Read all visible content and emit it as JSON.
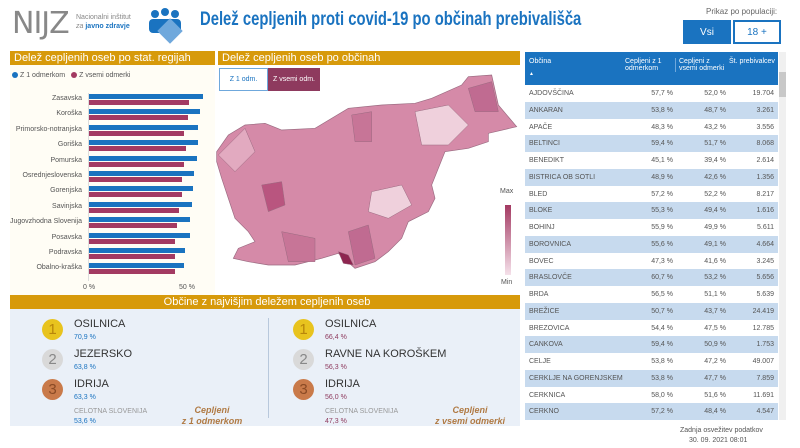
{
  "header": {
    "logo_text": "NIJZ",
    "logo_sub1": "Nacionalni inštitut",
    "logo_sub2_a": "za",
    "logo_sub2_b": "javno zdravje",
    "erco_logo": "eRCO",
    "title": "Delež cepljenih proti covid-19 po občinah prebivališča"
  },
  "population": {
    "label": "Prikaz po populaciji:",
    "options": [
      "Vsi",
      "18 +"
    ],
    "selected": "Vsi"
  },
  "regions_panel": {
    "title": "Delež cepljenih oseb po stat. regijah"
  },
  "chart_data": {
    "type": "bar",
    "orientation": "horizontal",
    "title": "Delež cepljenih oseb po stat. regijah",
    "categories": [
      "Zasavska",
      "Koroška",
      "Primorsko-notranjska",
      "Goriška",
      "Pomurska",
      "Osrednjeslovenska",
      "Gorenjska",
      "Savinjska",
      "Jugovzhodna Slovenija",
      "Posavska",
      "Podravska",
      "Obalno-kraška"
    ],
    "series": [
      {
        "name": "Z 1 odmerkom",
        "color": "#1a73c0",
        "values": [
          58.8,
          57.2,
          56.2,
          56.2,
          55.7,
          54.1,
          53.6,
          53.1,
          52.1,
          52.0,
          49.5,
          49.2
        ]
      },
      {
        "name": "Z vsemi odmerki",
        "color": "#a33a62",
        "values": [
          51.5,
          51.0,
          49.0,
          50.0,
          49.0,
          47.9,
          47.9,
          46.4,
          45.4,
          44.3,
          44.1,
          44.1
        ]
      }
    ],
    "xticks": [
      "0 %",
      "50 %"
    ],
    "xlim": [
      0,
      60
    ]
  },
  "map_panel": {
    "title": "Delež cepljenih oseb po občinah",
    "toggle": [
      "Z 1 odm.",
      "Z vsemi odm."
    ],
    "selected": "Z vsemi odm.",
    "legend_max": "Max",
    "legend_min": "Min"
  },
  "table": {
    "headers": [
      "Občina",
      "Cepljeni z 1 odmerkom",
      "Cepljeni z vsemi odmerki",
      "Št. prebivalcev"
    ],
    "sort_icon": "▲",
    "rows": [
      [
        "AJDOVŠČINA",
        "57,7 %",
        "52,0 %",
        "19.704"
      ],
      [
        "ANKARAN",
        "53,8 %",
        "48,7 %",
        "3.261"
      ],
      [
        "APAČE",
        "48,3 %",
        "43,2 %",
        "3.556"
      ],
      [
        "BELTINCI",
        "59,4 %",
        "51,7 %",
        "8.068"
      ],
      [
        "BENEDIKT",
        "45,1 %",
        "39,4 %",
        "2.614"
      ],
      [
        "BISTRICA OB SOTLI",
        "48,9 %",
        "42,6 %",
        "1.356"
      ],
      [
        "BLED",
        "57,2 %",
        "52,2 %",
        "8.217"
      ],
      [
        "BLOKE",
        "55,3 %",
        "49,4 %",
        "1.616"
      ],
      [
        "BOHINJ",
        "55,9 %",
        "49,9 %",
        "5.611"
      ],
      [
        "BOROVNICA",
        "55,6 %",
        "49,1 %",
        "4.664"
      ],
      [
        "BOVEC",
        "47,3 %",
        "41,6 %",
        "3.245"
      ],
      [
        "BRASLOVČE",
        "60,7 %",
        "53,2 %",
        "5.656"
      ],
      [
        "BRDA",
        "56,5 %",
        "51,1 %",
        "5.639"
      ],
      [
        "BREŽICE",
        "50,7 %",
        "43,7 %",
        "24.419"
      ],
      [
        "BREZOVICA",
        "54,4 %",
        "47,5 %",
        "12.785"
      ],
      [
        "CANKOVA",
        "59,4 %",
        "50,9 %",
        "1.753"
      ],
      [
        "CELJE",
        "53,8 %",
        "47,2 %",
        "49.007"
      ],
      [
        "CERKLJE NA GORENJSKEM",
        "53,8 %",
        "47,7 %",
        "7.859"
      ],
      [
        "CERKNICA",
        "58,0 %",
        "51,6 %",
        "11.691"
      ],
      [
        "CERKNO",
        "57,2 %",
        "48,4 %",
        "4.547"
      ]
    ]
  },
  "top": {
    "title": "Občine z najvišjim deležem cepljenih oseb",
    "left": {
      "items": [
        {
          "rank": "1",
          "name": "OSILNICA",
          "pct": "70,9 %"
        },
        {
          "rank": "2",
          "name": "JEZERSKO",
          "pct": "63,8 %"
        },
        {
          "rank": "3",
          "name": "IDRIJA",
          "pct": "63,3 %"
        }
      ],
      "total_label": "CELOTNA SLOVENIJA",
      "total": "53,6 %",
      "caption1": "Cepljeni",
      "caption2": "z 1 odmerkom"
    },
    "right": {
      "items": [
        {
          "rank": "1",
          "name": "OSILNICA",
          "pct": "66,4 %"
        },
        {
          "rank": "2",
          "name": "RAVNE NA KOROŠKEM",
          "pct": "56,3 %"
        },
        {
          "rank": "3",
          "name": "IDRIJA",
          "pct": "56,0 %"
        }
      ],
      "total_label": "CELOTNA SLOVENIJA",
      "total": "47,3 %",
      "caption1": "Cepljeni",
      "caption2": "z vsemi odmerki"
    }
  },
  "footer": {
    "refresh_label": "Zadnja osvežitev podatkov",
    "refresh_time": "30. 09. 2021 08:01"
  }
}
